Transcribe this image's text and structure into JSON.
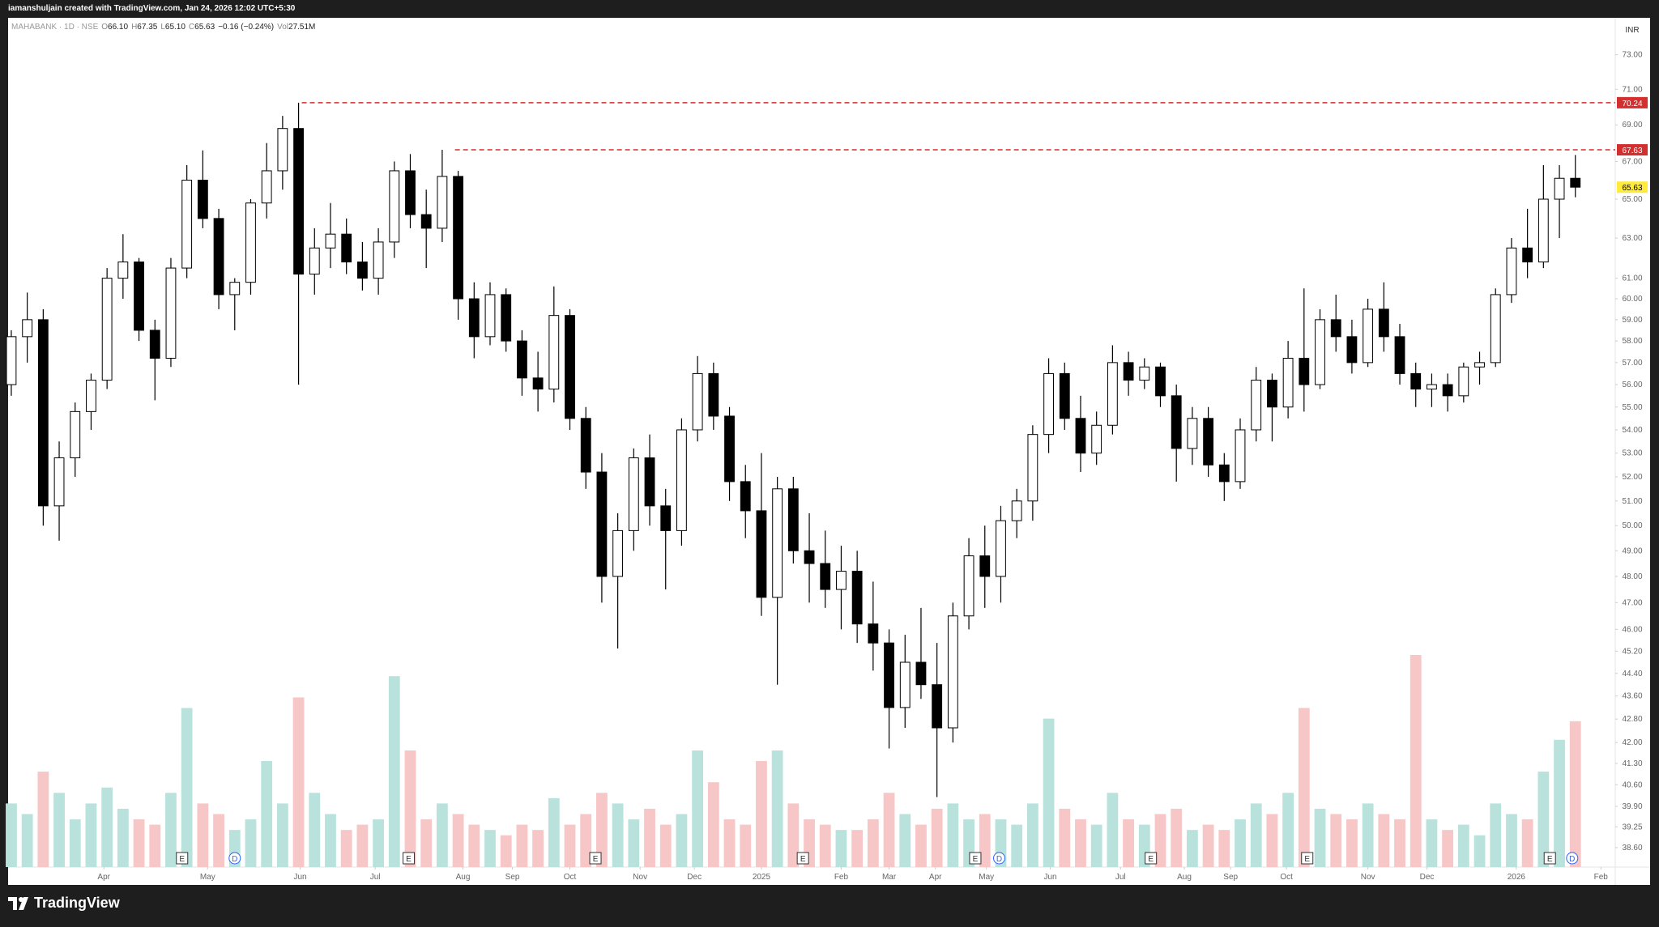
{
  "header": {
    "credit": "iamanshuljain created with TradingView.com, Jan 24, 2026 12:02 UTC+5:30",
    "symbol": "MAHABANK · 1D · NSE",
    "ohlc": [
      {
        "label": "O",
        "value": "66.10"
      },
      {
        "label": "H",
        "value": "67.35"
      },
      {
        "label": "L",
        "value": "65.10"
      },
      {
        "label": "C",
        "value": "65.63"
      },
      {
        "label": "",
        "value": "−0.16 (−0.24%)"
      },
      {
        "label": "Vol",
        "value": "27.51M"
      }
    ]
  },
  "footer": {
    "brand": "TradingView"
  },
  "chart_data": {
    "type": "candlestick",
    "currency": "INR",
    "log_scale": true,
    "up_color": "#ffffff",
    "down_color": "#000000",
    "vol_up_color": "#b9e2dd",
    "vol_down_color": "#f7c6c6",
    "line_color": "#d32f2f",
    "last_color": "#ffeb3b",
    "ylim": [
      38.0,
      75.2
    ],
    "xlim": [
      -0.2,
      100.5
    ],
    "yticks": [
      {
        "value": 73,
        "label": "73.00"
      },
      {
        "value": 71,
        "label": "71.00"
      },
      {
        "value": 69,
        "label": "69.00"
      },
      {
        "value": 67,
        "label": "67.00"
      },
      {
        "value": 65,
        "label": "65.00"
      },
      {
        "value": 63,
        "label": "63.00"
      },
      {
        "value": 61,
        "label": "61.00"
      },
      {
        "value": 60,
        "label": "60.00"
      },
      {
        "value": 59,
        "label": "59.00"
      },
      {
        "value": 58,
        "label": "58.00"
      },
      {
        "value": 57,
        "label": "57.00"
      },
      {
        "value": 56,
        "label": "56.00"
      },
      {
        "value": 55,
        "label": "55.00"
      },
      {
        "value": 54,
        "label": "54.00"
      },
      {
        "value": 53,
        "label": "53.00"
      },
      {
        "value": 52,
        "label": "52.00"
      },
      {
        "value": 51,
        "label": "51.00"
      },
      {
        "value": 50,
        "label": "50.00"
      },
      {
        "value": 49,
        "label": "49.00"
      },
      {
        "value": 48,
        "label": "48.00"
      },
      {
        "value": 47,
        "label": "47.00"
      },
      {
        "value": 46,
        "label": "46.00"
      },
      {
        "value": 45.2,
        "label": "45.20"
      },
      {
        "value": 44.4,
        "label": "44.40"
      },
      {
        "value": 43.6,
        "label": "43.60"
      },
      {
        "value": 42.8,
        "label": "42.80"
      },
      {
        "value": 42,
        "label": "42.00"
      },
      {
        "value": 41.3,
        "label": "41.30"
      },
      {
        "value": 40.6,
        "label": "40.60"
      },
      {
        "value": 39.9,
        "label": "39.90"
      },
      {
        "value": 39.25,
        "label": "39.25"
      },
      {
        "value": 38.6,
        "label": "38.60"
      }
    ],
    "xticks": [
      {
        "value": 5.8,
        "label": "Apr"
      },
      {
        "value": 12.3,
        "label": "May"
      },
      {
        "value": 18.1,
        "label": "Jun"
      },
      {
        "value": 22.8,
        "label": "Jul"
      },
      {
        "value": 28.3,
        "label": "Aug"
      },
      {
        "value": 31.4,
        "label": "Sep"
      },
      {
        "value": 35,
        "label": "Oct"
      },
      {
        "value": 39.4,
        "label": "Nov"
      },
      {
        "value": 42.8,
        "label": "Dec"
      },
      {
        "value": 47,
        "label": "2025"
      },
      {
        "value": 52,
        "label": "Feb"
      },
      {
        "value": 55,
        "label": "Mar"
      },
      {
        "value": 57.9,
        "label": "Apr"
      },
      {
        "value": 61.1,
        "label": "May"
      },
      {
        "value": 65.1,
        "label": "Jun"
      },
      {
        "value": 69.5,
        "label": "Jul"
      },
      {
        "value": 73.5,
        "label": "Aug"
      },
      {
        "value": 76.4,
        "label": "Sep"
      },
      {
        "value": 79.9,
        "label": "Oct"
      },
      {
        "value": 85,
        "label": "Nov"
      },
      {
        "value": 88.7,
        "label": "Dec"
      },
      {
        "value": 94.3,
        "label": "2026"
      },
      {
        "value": 99.6,
        "label": "Feb"
      }
    ],
    "hlines": [
      {
        "value": 70.24,
        "from": 18.2
      },
      {
        "value": 67.63,
        "from": 27.8
      }
    ],
    "events": [
      {
        "value": 10.7,
        "label": "E"
      },
      {
        "value": 14.0,
        "label": "D"
      },
      {
        "value": 24.9,
        "label": "E"
      },
      {
        "value": 36.6,
        "label": "E"
      },
      {
        "value": 49.6,
        "label": "E"
      },
      {
        "value": 60.4,
        "label": "E"
      },
      {
        "value": 61.9,
        "label": "D"
      },
      {
        "value": 71.4,
        "label": "E"
      },
      {
        "value": 81.2,
        "label": "E"
      },
      {
        "value": 96.4,
        "label": "E"
      },
      {
        "value": 97.8,
        "label": "D"
      }
    ],
    "candles": [
      [
        56.0,
        58.5,
        55.5,
        58.2
      ],
      [
        58.2,
        60.3,
        57.0,
        59.0
      ],
      [
        59.0,
        59.5,
        50.0,
        50.8
      ],
      [
        50.8,
        53.5,
        49.4,
        52.8
      ],
      [
        52.8,
        55.2,
        52.0,
        54.8
      ],
      [
        54.8,
        56.5,
        54.0,
        56.2
      ],
      [
        56.2,
        61.5,
        55.8,
        61.0
      ],
      [
        61.0,
        63.2,
        60.0,
        61.8
      ],
      [
        61.8,
        62.0,
        58.0,
        58.5
      ],
      [
        58.5,
        59.0,
        55.3,
        57.2
      ],
      [
        57.2,
        62.0,
        56.8,
        61.5
      ],
      [
        61.5,
        66.8,
        61.0,
        66.0
      ],
      [
        66.0,
        67.6,
        63.5,
        64.0
      ],
      [
        64.0,
        64.5,
        59.5,
        60.2
      ],
      [
        60.2,
        61.0,
        58.5,
        60.8
      ],
      [
        60.8,
        65.0,
        60.2,
        64.8
      ],
      [
        64.8,
        68.0,
        64.0,
        66.5
      ],
      [
        66.5,
        69.5,
        65.5,
        68.8
      ],
      [
        68.8,
        70.24,
        56.0,
        61.2
      ],
      [
        61.2,
        63.5,
        60.2,
        62.5
      ],
      [
        62.5,
        64.8,
        61.5,
        63.2
      ],
      [
        63.2,
        64.0,
        61.2,
        61.8
      ],
      [
        61.8,
        62.8,
        60.4,
        61.0
      ],
      [
        61.0,
        63.5,
        60.2,
        62.8
      ],
      [
        62.8,
        67.0,
        62.0,
        66.5
      ],
      [
        66.5,
        67.4,
        63.5,
        64.2
      ],
      [
        64.2,
        65.5,
        61.5,
        63.5
      ],
      [
        63.5,
        67.63,
        62.8,
        66.2
      ],
      [
        66.2,
        66.5,
        59.0,
        60.0
      ],
      [
        60.0,
        60.8,
        57.2,
        58.2
      ],
      [
        58.2,
        60.8,
        57.8,
        60.2
      ],
      [
        60.2,
        60.5,
        57.5,
        58.0
      ],
      [
        58.0,
        58.5,
        55.5,
        56.3
      ],
      [
        56.3,
        57.5,
        54.8,
        55.8
      ],
      [
        55.8,
        60.6,
        55.2,
        59.2
      ],
      [
        59.2,
        59.5,
        54.0,
        54.5
      ],
      [
        54.5,
        55.0,
        51.5,
        52.2
      ],
      [
        52.2,
        53.0,
        47.0,
        48.0
      ],
      [
        48.0,
        50.5,
        45.3,
        49.8
      ],
      [
        49.8,
        53.2,
        49.0,
        52.8
      ],
      [
        52.8,
        53.8,
        50.0,
        50.8
      ],
      [
        50.8,
        51.5,
        47.5,
        49.8
      ],
      [
        49.8,
        54.5,
        49.2,
        54.0
      ],
      [
        54.0,
        57.3,
        53.5,
        56.5
      ],
      [
        56.5,
        57.0,
        54.0,
        54.6
      ],
      [
        54.6,
        55.0,
        51.0,
        51.8
      ],
      [
        51.8,
        52.5,
        49.5,
        50.6
      ],
      [
        50.6,
        53.0,
        46.5,
        47.2
      ],
      [
        47.2,
        52.0,
        44.0,
        51.5
      ],
      [
        51.5,
        52.0,
        48.5,
        49.0
      ],
      [
        49.0,
        50.5,
        47.0,
        48.5
      ],
      [
        48.5,
        49.8,
        46.8,
        47.5
      ],
      [
        47.5,
        49.2,
        46.0,
        48.2
      ],
      [
        48.2,
        49.0,
        45.5,
        46.2
      ],
      [
        46.2,
        47.8,
        44.5,
        45.5
      ],
      [
        45.5,
        46.0,
        41.8,
        43.2
      ],
      [
        43.2,
        45.8,
        42.5,
        44.8
      ],
      [
        44.8,
        46.8,
        43.5,
        44.0
      ],
      [
        44.0,
        45.5,
        40.2,
        42.5
      ],
      [
        42.5,
        47.0,
        42.0,
        46.5
      ],
      [
        46.5,
        49.5,
        46.0,
        48.8
      ],
      [
        48.8,
        50.0,
        46.8,
        48.0
      ],
      [
        48.0,
        50.8,
        47.0,
        50.2
      ],
      [
        50.2,
        51.5,
        49.5,
        51.0
      ],
      [
        51.0,
        54.2,
        50.2,
        53.8
      ],
      [
        53.8,
        57.2,
        53.0,
        56.5
      ],
      [
        56.5,
        57.0,
        54.0,
        54.5
      ],
      [
        54.5,
        55.5,
        52.2,
        53.0
      ],
      [
        53.0,
        54.8,
        52.5,
        54.2
      ],
      [
        54.2,
        57.8,
        53.8,
        57.0
      ],
      [
        57.0,
        57.5,
        55.5,
        56.2
      ],
      [
        56.2,
        57.2,
        55.8,
        56.8
      ],
      [
        56.8,
        57.0,
        55.0,
        55.5
      ],
      [
        55.5,
        56.0,
        51.8,
        53.2
      ],
      [
        53.2,
        55.0,
        52.5,
        54.5
      ],
      [
        54.5,
        55.0,
        52.0,
        52.5
      ],
      [
        52.5,
        53.0,
        51.0,
        51.8
      ],
      [
        51.8,
        54.5,
        51.5,
        54.0
      ],
      [
        54.0,
        56.8,
        53.5,
        56.2
      ],
      [
        56.2,
        56.5,
        53.5,
        55.0
      ],
      [
        55.0,
        58.0,
        54.5,
        57.2
      ],
      [
        57.2,
        60.5,
        54.8,
        56.0
      ],
      [
        56.0,
        59.5,
        55.8,
        59.0
      ],
      [
        59.0,
        60.2,
        57.5,
        58.2
      ],
      [
        58.2,
        59.0,
        56.5,
        57.0
      ],
      [
        57.0,
        60.0,
        56.8,
        59.5
      ],
      [
        59.5,
        60.8,
        57.5,
        58.2
      ],
      [
        58.2,
        58.8,
        56.0,
        56.5
      ],
      [
        56.5,
        57.0,
        55.0,
        55.8
      ],
      [
        55.8,
        56.5,
        55.0,
        56.0
      ],
      [
        56.0,
        56.5,
        54.8,
        55.5
      ],
      [
        55.5,
        57.0,
        55.2,
        56.8
      ],
      [
        56.8,
        57.5,
        56.0,
        57.0
      ],
      [
        57.0,
        60.5,
        56.8,
        60.2
      ],
      [
        60.2,
        63.0,
        59.8,
        62.5
      ],
      [
        62.5,
        64.5,
        61.0,
        61.8
      ],
      [
        61.8,
        66.8,
        61.5,
        65.0
      ],
      [
        65.0,
        66.8,
        63.0,
        66.1
      ],
      [
        66.1,
        67.35,
        65.1,
        65.63
      ]
    ],
    "volume": [
      12,
      10,
      18,
      14,
      9,
      12,
      15,
      11,
      9,
      8,
      14,
      30,
      12,
      10,
      7,
      9,
      20,
      12,
      32,
      14,
      10,
      7,
      8,
      9,
      36,
      22,
      9,
      12,
      10,
      8,
      7,
      6,
      8,
      7,
      13,
      8,
      10,
      14,
      12,
      9,
      11,
      8,
      10,
      22,
      16,
      9,
      8,
      20,
      22,
      12,
      9,
      8,
      7,
      7,
      9,
      14,
      10,
      8,
      11,
      12,
      9,
      10,
      9,
      8,
      12,
      28,
      11,
      9,
      8,
      14,
      9,
      8,
      10,
      11,
      7,
      8,
      7,
      9,
      12,
      10,
      14,
      30,
      11,
      10,
      9,
      12,
      10,
      9,
      40,
      9,
      7,
      8,
      6,
      12,
      10,
      9,
      18,
      24,
      27.51
    ]
  }
}
